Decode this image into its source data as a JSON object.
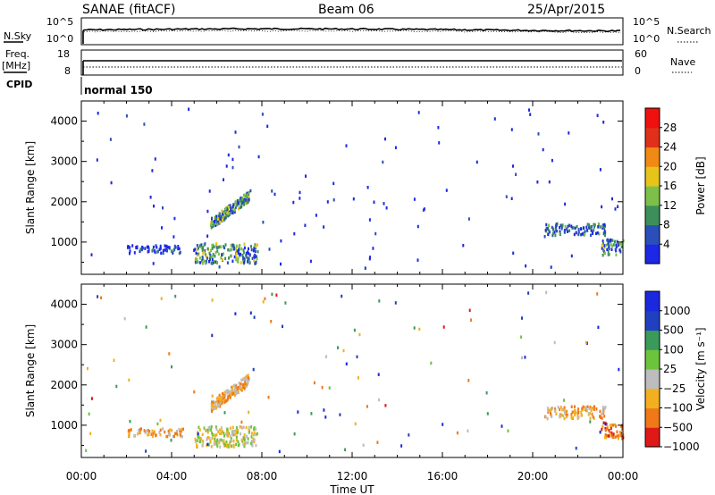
{
  "header": {
    "station": "SANAE (fitACF)",
    "beam": "Beam 06",
    "date": "25/Apr/2015"
  },
  "left_labels": {
    "nsky": "N.Sky",
    "freq": "Freq.",
    "freq_unit": "[MHz]",
    "cpid": "CPID"
  },
  "right_labels": {
    "nsearch": "N.Search",
    "nave": "Nave"
  },
  "nsky_axis": {
    "top": "10^5",
    "bottom": "10^0"
  },
  "nsearch_axis": {
    "top": "10^5",
    "bottom": "10^0"
  },
  "freq_axis": {
    "top": "18",
    "bottom": "8"
  },
  "nave_axis": {
    "top": "60",
    "bottom": "0"
  },
  "cpid_text": "normal 150",
  "colors": {
    "power": [
      "#1c28e6",
      "#2a4fb8",
      "#3c8f5a",
      "#7cc04a",
      "#e6c41a",
      "#f08a14",
      "#e0301a",
      "#f01010"
    ],
    "velocity": [
      "#e01818",
      "#f07818",
      "#f2b020",
      "#bdbdbd",
      "#6cc43c",
      "#3a9a5a",
      "#2040c0",
      "#1a28e0"
    ]
  },
  "chart_data": [
    {
      "type": "heatmap",
      "parameter": "Power",
      "ylabel": "Slant Range [km]",
      "yticks": [
        1000,
        2000,
        3000,
        4000
      ],
      "ylim": [
        200,
        4500
      ],
      "xlim": [
        0,
        24
      ],
      "colorbar": {
        "label": "Power [dB]",
        "ticks": [
          "4",
          "8",
          "12",
          "16",
          "20",
          "24",
          "28"
        ],
        "range": [
          0,
          32
        ]
      },
      "regions": [
        {
          "x0": 5.7,
          "x1": 7.4,
          "y0": 1350,
          "y1": 2150,
          "level": 12
        },
        {
          "x0": 5.0,
          "x1": 7.8,
          "y0": 500,
          "y1": 1000,
          "level": 10
        },
        {
          "x0": 20.5,
          "x1": 23.2,
          "y0": 1200,
          "y1": 1500,
          "level": 6
        },
        {
          "x0": 23.0,
          "x1": 24.0,
          "y0": 700,
          "y1": 1100,
          "level": 10
        },
        {
          "x0": 2.0,
          "x1": 4.5,
          "y0": 750,
          "y1": 950,
          "level": 4
        }
      ]
    },
    {
      "type": "heatmap",
      "parameter": "Velocity",
      "ylabel": "Slant Range [km]",
      "xlabel": "Time UT",
      "yticks": [
        1000,
        2000,
        3000,
        4000
      ],
      "ylim": [
        200,
        4500
      ],
      "xlim": [
        0,
        24
      ],
      "xticks": [
        "00:00",
        "04:00",
        "08:00",
        "12:00",
        "16:00",
        "20:00",
        "00:00"
      ],
      "colorbar": {
        "label": "Velocity [m s⁻¹]",
        "ticks": [
          "1000",
          "500",
          "100",
          "25",
          "−25",
          "−100",
          "−500",
          "−1000"
        ],
        "range": [
          -1000,
          1000
        ]
      },
      "regions": [
        {
          "x0": 5.7,
          "x1": 7.4,
          "y0": 1350,
          "y1": 2150,
          "level": -100
        },
        {
          "x0": 5.0,
          "x1": 7.8,
          "y0": 500,
          "y1": 1000,
          "level": 25
        },
        {
          "x0": 20.5,
          "x1": 23.2,
          "y0": 1200,
          "y1": 1500,
          "level": -100
        },
        {
          "x0": 23.0,
          "x1": 24.0,
          "y0": 700,
          "y1": 1100,
          "level": -500
        },
        {
          "x0": 2.0,
          "x1": 4.5,
          "y0": 750,
          "y1": 950,
          "level": -100
        }
      ]
    }
  ]
}
